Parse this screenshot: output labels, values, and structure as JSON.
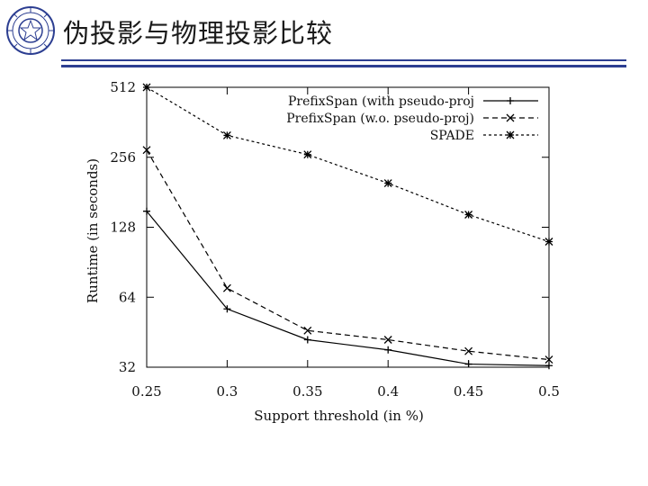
{
  "slide": {
    "title": "伪投影与物理投影比较",
    "accent_color": "#2c3e91",
    "logo_icon": "university-seal-icon"
  },
  "chart_data": {
    "type": "line",
    "title": "",
    "xlabel": "Support threshold (in %)",
    "ylabel": "Runtime (in seconds)",
    "x": [
      0.25,
      0.3,
      0.35,
      0.4,
      0.45,
      0.5
    ],
    "x_tick_labels": [
      "0.25",
      "0.3",
      "0.35",
      "0.4",
      "0.45",
      "0.5"
    ],
    "y_scale": "log2",
    "y_ticks": [
      32,
      64,
      128,
      256,
      512
    ],
    "y_tick_labels": [
      "32",
      "64",
      "128",
      "256",
      "512"
    ],
    "xlim": [
      0.25,
      0.5
    ],
    "ylim": [
      32,
      512
    ],
    "legend_position": "top-right",
    "series": [
      {
        "name": "PrefixSpan (with pseudo-proj",
        "marker": "+",
        "dash": "solid",
        "values": [
          150,
          57,
          42,
          38,
          33,
          32.5
        ]
      },
      {
        "name": "PrefixSpan (w.o. pseudo-proj)",
        "marker": "x",
        "dash": "dashed",
        "values": [
          275,
          70,
          46,
          42,
          37.5,
          34.5
        ]
      },
      {
        "name": "SPADE",
        "marker": "*",
        "dash": "dotted",
        "values": [
          512,
          318,
          263,
          198,
          145,
          111
        ]
      }
    ]
  }
}
